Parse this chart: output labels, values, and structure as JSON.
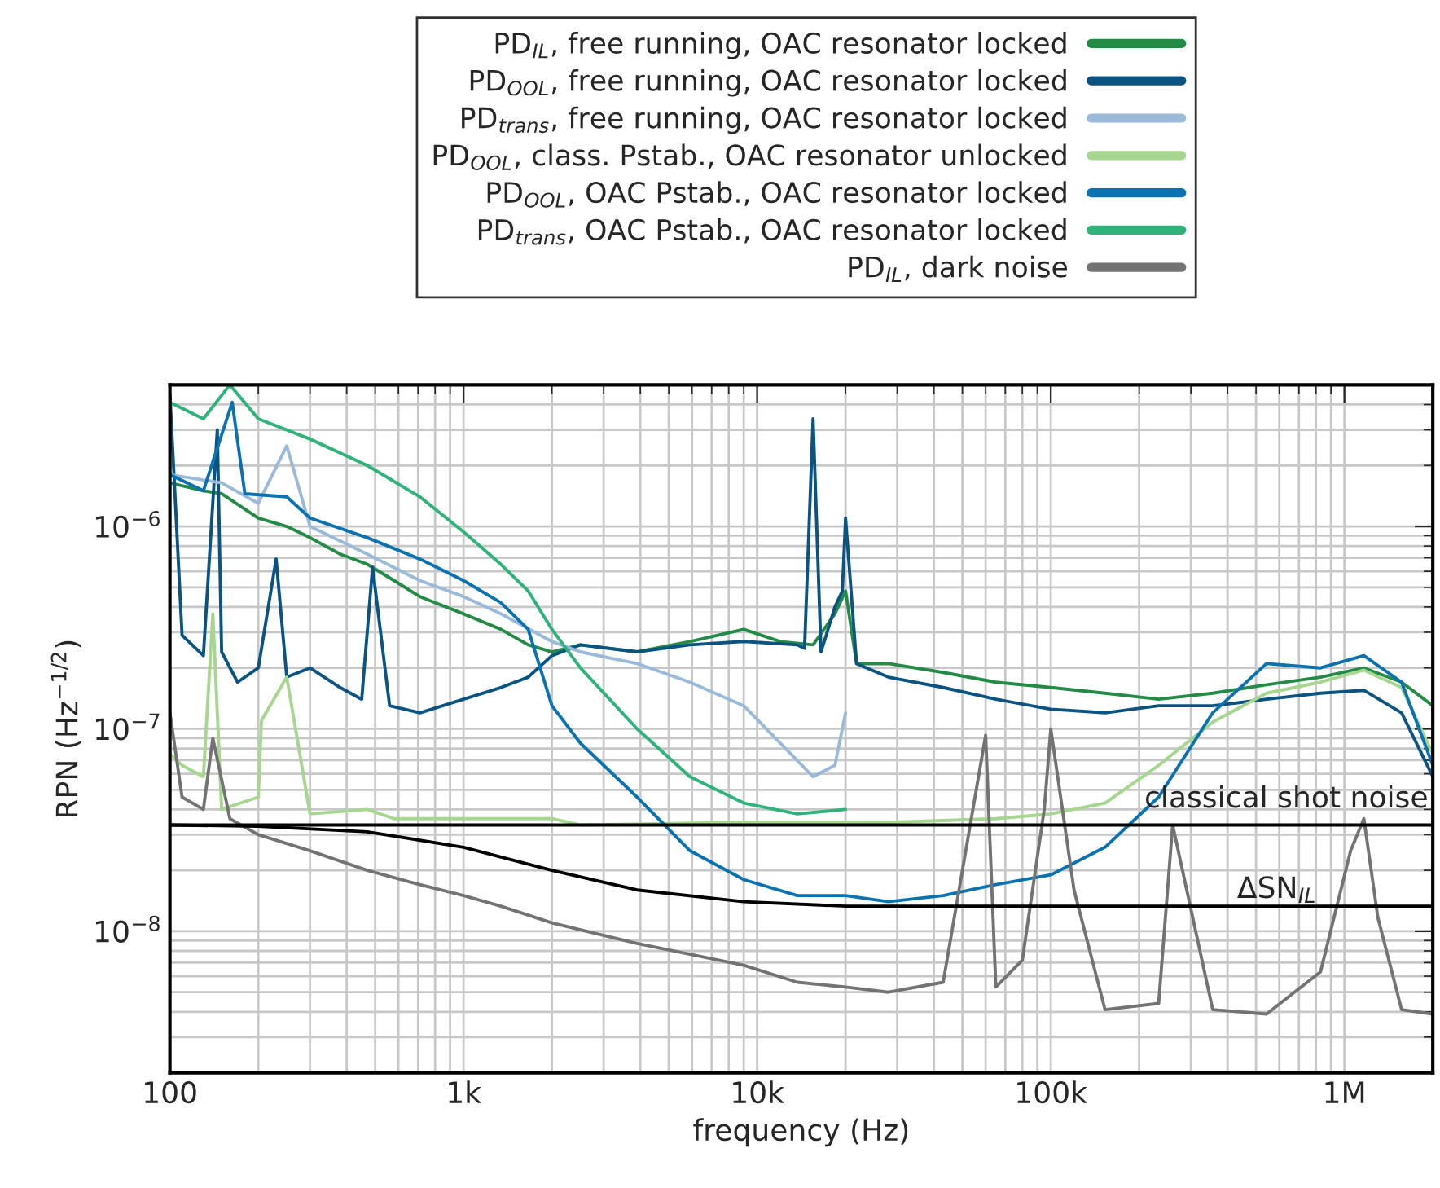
{
  "chart_data": {
    "type": "line",
    "xlabel": "frequency (Hz)",
    "ylabel": "RPN (Hz$^{−1/2}$)",
    "log": "xy",
    "grid": true,
    "legend": "top",
    "line_style": "solid",
    "marker": "none",
    "xlim": [
      100,
      2000000
    ],
    "ylim": [
      2e-09,
      5e-06
    ],
    "xticks": [
      {
        "value": 100,
        "label": "100"
      },
      {
        "value": 1000,
        "label": "1k"
      },
      {
        "value": 10000,
        "label": "10k"
      },
      {
        "value": 100000,
        "label": "100k"
      },
      {
        "value": 1000000,
        "label": "1M"
      }
    ],
    "yticks": [
      {
        "value": 1e-08,
        "label": "10$^{−8}$"
      },
      {
        "value": 1e-07,
        "label": "10$^{−7}$"
      },
      {
        "value": 1e-06,
        "label": "10$^{−6}$"
      }
    ],
    "ref_lines": [
      {
        "axis": "y",
        "value": 3.35e-08,
        "label": "classical shot noise",
        "color": "#000000",
        "line_style": "solid"
      }
    ],
    "annotations": [
      "ΔSN$_{IL}$"
    ],
    "series": [
      {
        "name": "PD$_{IL}$, free running, OAC resonator locked",
        "color": "#238b45",
        "x": [
          100,
          130,
          150,
          200,
          250,
          300,
          380,
          470,
          580,
          710,
          1000,
          1340,
          1660,
          2000,
          2500,
          3900,
          5900,
          9000,
          12000,
          15500,
          18400,
          20000,
          21800,
          28000,
          43000,
          65000,
          100000,
          153000,
          233000,
          356000,
          543000,
          829000,
          1165000,
          1566000,
          2000000
        ],
        "values": [
          1.64e-06,
          1.5e-06,
          1.45e-06,
          1.1e-06,
          1e-06,
          8.8e-07,
          7.3e-07,
          6.5e-07,
          5.4e-07,
          4.5e-07,
          3.7e-07,
          3.1e-07,
          2.6e-07,
          2.4e-07,
          2.6e-07,
          2.4e-07,
          2.7e-07,
          3.1e-07,
          2.7e-07,
          2.6e-07,
          3.7e-07,
          4.8e-07,
          2.1e-07,
          2.1e-07,
          1.9e-07,
          1.7e-07,
          1.6e-07,
          1.5e-07,
          1.4e-07,
          1.5e-07,
          1.65e-07,
          1.8e-07,
          2e-07,
          1.7e-07,
          1.3e-07
        ]
      },
      {
        "name": "PD$_{OOL}$, free running, OAC resonator locked",
        "color": "#0b5482",
        "x": [
          100,
          110,
          130,
          145,
          150,
          170,
          200,
          230,
          250,
          300,
          380,
          450,
          490,
          560,
          710,
          1000,
          1340,
          1660,
          2000,
          2500,
          3900,
          5900,
          9000,
          13700,
          14500,
          15500,
          16500,
          18400,
          19500,
          20000,
          21800,
          28000,
          43000,
          65000,
          100000,
          153000,
          233000,
          356000,
          543000,
          829000,
          1165000,
          1566000,
          2000000
        ],
        "values": [
          4.5e-06,
          2.9e-07,
          2.3e-07,
          3e-06,
          2.4e-07,
          1.7e-07,
          2e-07,
          6.9e-07,
          1.8e-07,
          2e-07,
          1.6e-07,
          1.4e-07,
          6.3e-07,
          1.3e-07,
          1.2e-07,
          1.4e-07,
          1.6e-07,
          1.8e-07,
          2.3e-07,
          2.6e-07,
          2.4e-07,
          2.6e-07,
          2.7e-07,
          2.6e-07,
          2.5e-07,
          3.4e-06,
          2.4e-07,
          4e-07,
          4.8e-07,
          1.1e-06,
          2.1e-07,
          1.8e-07,
          1.6e-07,
          1.4e-07,
          1.25e-07,
          1.2e-07,
          1.3e-07,
          1.3e-07,
          1.4e-07,
          1.5e-07,
          1.55e-07,
          1.2e-07,
          5.8e-08
        ]
      },
      {
        "name": "PD$_{trans}$, free running, OAC resonator locked",
        "color": "#9bbad9",
        "x": [
          100,
          150,
          200,
          250,
          300,
          470,
          710,
          1000,
          1340,
          2000,
          2500,
          3900,
          5900,
          9000,
          12000,
          15500,
          18400,
          20000
        ],
        "values": [
          1.8e-06,
          1.64e-06,
          1.3e-06,
          2.5e-06,
          1e-06,
          7.3e-07,
          5.4e-07,
          4.5e-07,
          3.7e-07,
          2.7e-07,
          2.4e-07,
          2.1e-07,
          1.7e-07,
          1.3e-07,
          8.5e-08,
          5.8e-08,
          6.6e-08,
          1.2e-07
        ]
      },
      {
        "name": "PD$_{OOL}$, class. Pstab., OAC resonator unlocked",
        "color": "#a6d68f",
        "x": [
          100,
          110,
          130,
          140,
          150,
          200,
          205,
          250,
          300,
          470,
          580,
          1000,
          2000,
          2500,
          9000,
          28000,
          65000,
          100000,
          153000,
          233000,
          356000,
          543000,
          829000,
          1165000,
          1566000,
          2000000
        ],
        "values": [
          7.5e-08,
          6.6e-08,
          5.8e-08,
          3.7e-07,
          4e-08,
          4.6e-08,
          1.1e-07,
          1.8e-07,
          3.8e-08,
          4e-08,
          3.6e-08,
          3.6e-08,
          3.6e-08,
          3.35e-08,
          3.45e-08,
          3.45e-08,
          3.6e-08,
          3.8e-08,
          4.3e-08,
          6.6e-08,
          1.08e-07,
          1.5e-07,
          1.7e-07,
          1.95e-07,
          1.6e-07,
          7.5e-08
        ]
      },
      {
        "name": "PD$_{OOL}$, OAC Pstab., OAC resonator locked",
        "color": "#0a72b0",
        "x": [
          100,
          130,
          163,
          180,
          250,
          300,
          470,
          710,
          1000,
          1340,
          1660,
          2000,
          2500,
          3900,
          5900,
          9000,
          13700,
          20000,
          28000,
          43000,
          65000,
          100000,
          153000,
          233000,
          356000,
          543000,
          829000,
          1165000,
          1566000,
          2000000
        ],
        "values": [
          1.8e-06,
          1.5e-06,
          4.1e-06,
          1.45e-06,
          1.4e-06,
          1.1e-06,
          8.8e-07,
          6.9e-07,
          5.4e-07,
          4.2e-07,
          3.1e-07,
          1.3e-07,
          8.5e-08,
          4.6e-08,
          2.5e-08,
          1.8e-08,
          1.5e-08,
          1.5e-08,
          1.4e-08,
          1.5e-08,
          1.7e-08,
          1.9e-08,
          2.6e-08,
          4.6e-08,
          1.2e-07,
          2.1e-07,
          2e-07,
          2.3e-07,
          1.7e-07,
          6.6e-08
        ]
      },
      {
        "name": "PD$_{trans}$, OAC Pstab., OAC resonator locked",
        "color": "#2fb37a",
        "x": [
          100,
          130,
          160,
          200,
          300,
          470,
          710,
          1000,
          1340,
          1660,
          2000,
          2500,
          3900,
          5900,
          9000,
          13700,
          20000
        ],
        "values": [
          4.1e-06,
          3.4e-06,
          5e-06,
          3.4e-06,
          2.7e-06,
          2e-06,
          1.4e-06,
          9.4e-07,
          6.5e-07,
          4.8e-07,
          3.1e-07,
          2e-07,
          1e-07,
          5.8e-08,
          4.3e-08,
          3.8e-08,
          4e-08
        ]
      },
      {
        "name": "PD$_{IL}$, dark noise",
        "color": "#737373",
        "x": [
          100,
          110,
          130,
          140,
          160,
          200,
          300,
          470,
          710,
          1000,
          1340,
          2000,
          3900,
          5900,
          9000,
          13700,
          20000,
          28000,
          43000,
          60000,
          65000,
          80000,
          95000,
          100000,
          120000,
          153000,
          233000,
          260000,
          356000,
          543000,
          829000,
          1050000,
          1165000,
          1300000,
          1566000,
          2000000
        ],
        "values": [
          1.2e-07,
          4.6e-08,
          4e-08,
          9e-08,
          3.6e-08,
          3e-08,
          2.5e-08,
          2e-08,
          1.7e-08,
          1.5e-08,
          1.33e-08,
          1.1e-08,
          8.7e-09,
          7.7e-09,
          6.8e-09,
          5.6e-09,
          5.3e-09,
          5e-09,
          5.6e-09,
          9.3e-08,
          5.3e-09,
          7.2e-09,
          4e-08,
          1e-07,
          1.6e-08,
          4.1e-09,
          4.4e-09,
          3.35e-08,
          4.1e-09,
          3.9e-09,
          6.3e-09,
          2.5e-08,
          3.6e-08,
          1.17e-08,
          4.1e-09,
          3.9e-09
        ]
      },
      {
        "color": "#000000",
        "x": [
          100,
          200,
          470,
          1000,
          2000,
          3900,
          9000,
          20000,
          2000000
        ],
        "values": [
          3.35e-08,
          3.3e-08,
          3.1e-08,
          2.6e-08,
          2e-08,
          1.6e-08,
          1.4e-08,
          1.33e-08,
          1.33e-08
        ]
      }
    ]
  }
}
